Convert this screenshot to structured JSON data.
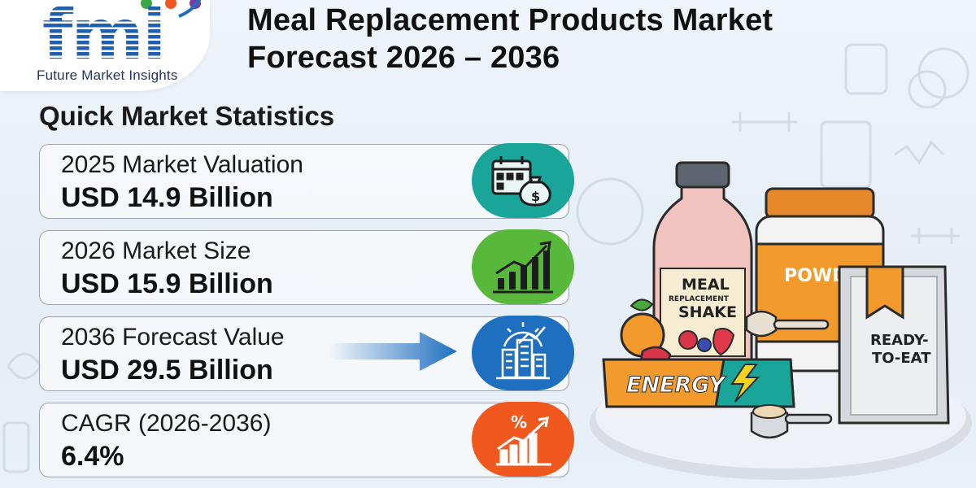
{
  "brand": {
    "logo_letters": "fmi",
    "name": "Future Market Insights"
  },
  "title": {
    "line1": "Meal Replacement Products Market",
    "line2": "Forecast 2026 – 2036"
  },
  "section_title": "Quick Market Statistics",
  "stats": [
    {
      "label": "2025 Market Valuation",
      "value": "USD 14.9 Billion",
      "icon": "calendar-money-icon",
      "color": "#1aa59a"
    },
    {
      "label": "2026 Market Size",
      "value": "USD 15.9 Billion",
      "icon": "growth-chart-icon",
      "color": "#58b83a"
    },
    {
      "label": "2036 Forecast Value",
      "value": "USD 29.5 Billion",
      "icon": "city-growth-icon",
      "color": "#1f6fc0"
    },
    {
      "label": "CAGR (2026-2036)",
      "value": "6.4%",
      "icon": "percent-chart-icon",
      "color": "#f0581e"
    }
  ],
  "products": {
    "shake_line1": "MEAL",
    "shake_line2": "REPLACEMENT",
    "shake_line3": "SHAKE",
    "powder": "POWD",
    "pouch_line1": "READY-",
    "pouch_line2": "TO-EAT",
    "bar": "ENERGY"
  }
}
